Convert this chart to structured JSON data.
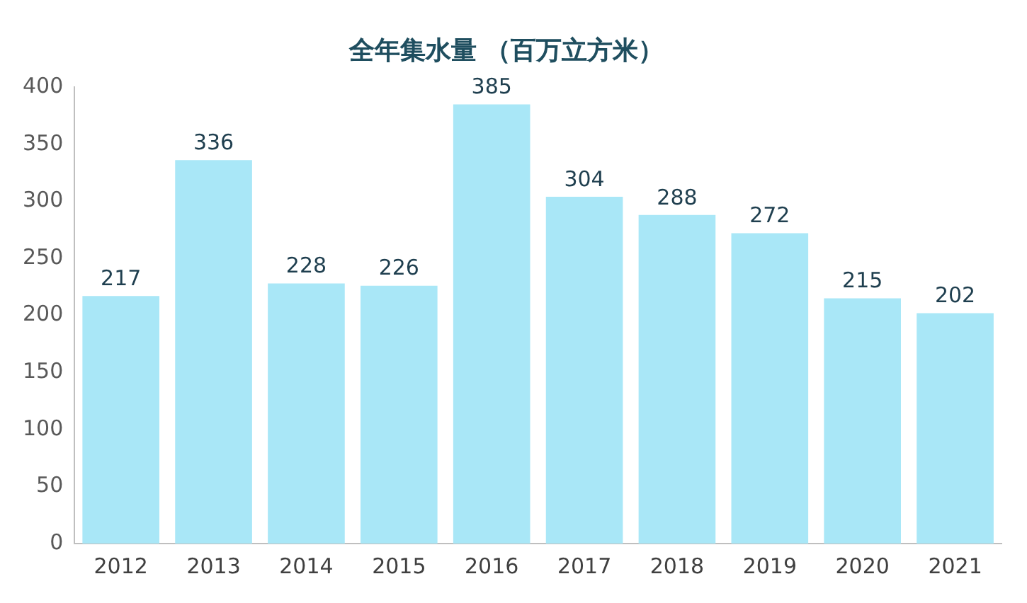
{
  "chart_data": {
    "type": "bar",
    "title": "全年集水量 （百万立方米）",
    "categories": [
      "2012",
      "2013",
      "2014",
      "2015",
      "2016",
      "2017",
      "2018",
      "2019",
      "2020",
      "2021"
    ],
    "values": [
      217,
      336,
      228,
      226,
      385,
      304,
      288,
      272,
      215,
      202
    ],
    "color": "#a9e7f7",
    "ylim": [
      0,
      400
    ],
    "yticks": [
      0,
      50,
      100,
      150,
      200,
      250,
      300,
      350,
      400
    ],
    "grid": false,
    "legend": false,
    "data_labels": true
  }
}
